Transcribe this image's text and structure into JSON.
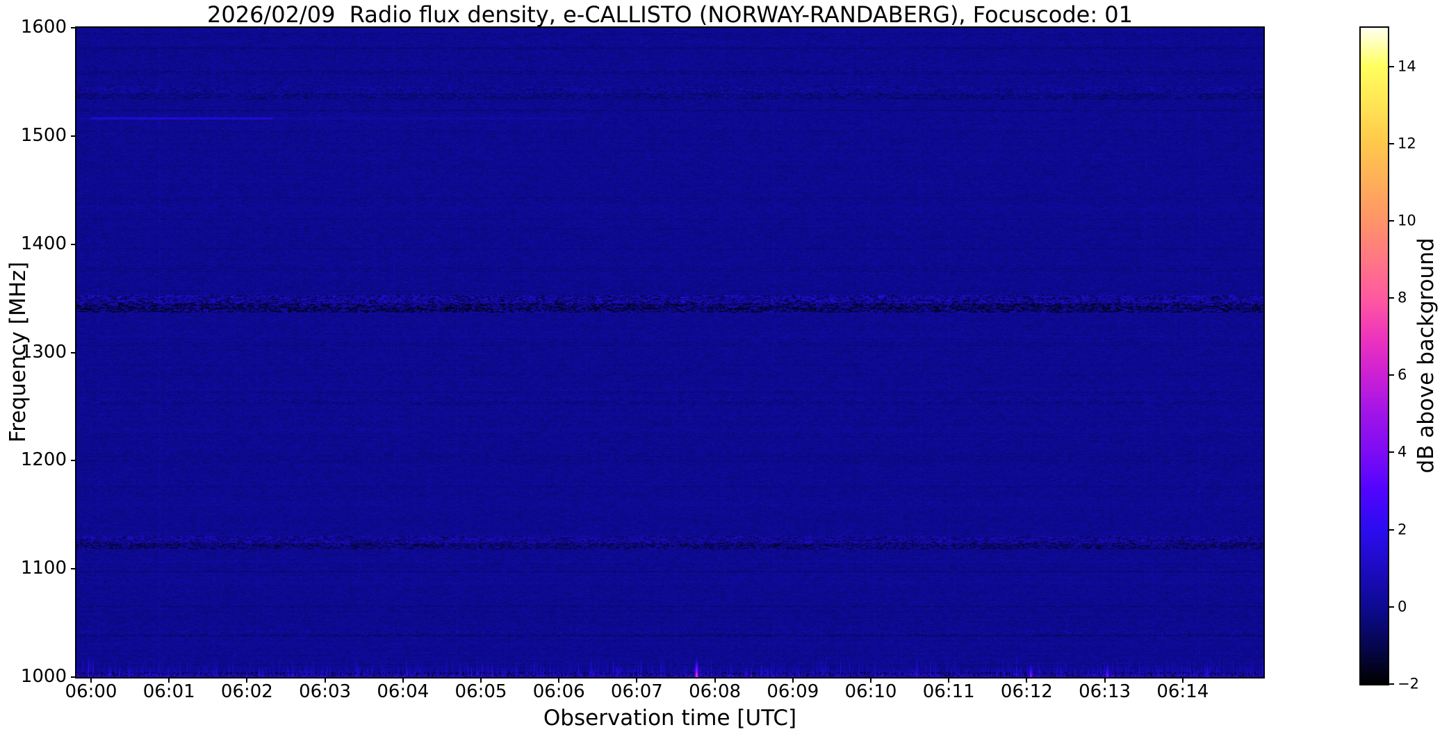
{
  "chart_data": {
    "type": "heatmap",
    "subtype": "radio-spectrogram",
    "title": "2026/02/09  Radio flux density, e-CALLISTO (NORWAY-RANDABERG), Focuscode: 01",
    "xlabel": "Observation time [UTC]",
    "ylabel": "Frequency [MHz]",
    "x_ticks": [
      "06:00",
      "06:01",
      "06:02",
      "06:03",
      "06:04",
      "06:05",
      "06:06",
      "06:07",
      "06:08",
      "06:09",
      "06:10",
      "06:11",
      "06:12",
      "06:13",
      "06:14"
    ],
    "y_ticks": [
      1600,
      1500,
      1400,
      1300,
      1200,
      1100,
      1000
    ],
    "x_range_utc": [
      "05:59:49",
      "06:15:00"
    ],
    "y_range_mhz": [
      1000,
      1600
    ],
    "grid": false,
    "background_level_db": 0,
    "base_noise_db": 0.33,
    "background_color": "#0d0a92",
    "colorbar": {
      "label": "dB above background",
      "ticks": [
        14,
        12,
        10,
        8,
        6,
        4,
        2,
        0,
        -2
      ],
      "range_db": [
        -2,
        15
      ],
      "position": "right",
      "colormap_stops": [
        {
          "v": -2,
          "c": "#000000"
        },
        {
          "v": -1,
          "c": "#06064f"
        },
        {
          "v": 0,
          "c": "#0d0a92"
        },
        {
          "v": 2,
          "c": "#2c0cf0"
        },
        {
          "v": 3,
          "c": "#5004ff"
        },
        {
          "v": 4,
          "c": "#7d0bf5"
        },
        {
          "v": 5,
          "c": "#a014e8"
        },
        {
          "v": 6,
          "c": "#cc20d4"
        },
        {
          "v": 7,
          "c": "#ee35bb"
        },
        {
          "v": 8,
          "c": "#ff5aa0"
        },
        {
          "v": 10,
          "c": "#ff9468"
        },
        {
          "v": 12,
          "c": "#ffc84b"
        },
        {
          "v": 14,
          "c": "#ffff5e"
        },
        {
          "v": 15,
          "c": "#fffff0"
        }
      ]
    },
    "features": {
      "speckle_bands": [
        {
          "freq_mhz": 1345,
          "width_mhz": 16,
          "noise_db": 1.5
        },
        {
          "freq_mhz": 1124,
          "width_mhz": 12,
          "noise_db": 1.15
        },
        {
          "freq_mhz": 1540,
          "width_mhz": 12,
          "noise_db": 0.7
        },
        {
          "freq_mhz": 1255,
          "width_mhz": 6,
          "noise_db": 0.5
        },
        {
          "freq_mhz": 1560,
          "width_mhz": 5,
          "noise_db": 0.45
        },
        {
          "freq_mhz": 1040,
          "width_mhz": 6,
          "noise_db": 0.5
        }
      ],
      "carrier_lines": [
        {
          "freq_mhz": 1516,
          "t_start_s": 0,
          "t_end_s": 140,
          "level_db": 1.4,
          "fade_t_end_s": 380,
          "fade_level_db": 0.5
        }
      ],
      "bottom_rfi": {
        "freq_lo_mhz": 1000,
        "freq_hi_mhz": 1016,
        "typical_db": 1.5,
        "max_db": 4
      },
      "bursts": [
        {
          "t_s": 466,
          "freq_lo_mhz": 1000,
          "freq_hi_mhz": 1020,
          "peak_db": 8.5
        },
        {
          "t_s": 723,
          "freq_lo_mhz": 1000,
          "freq_hi_mhz": 1014,
          "peak_db": 5.5
        },
        {
          "t_s": 782,
          "freq_lo_mhz": 1000,
          "freq_hi_mhz": 1014,
          "peak_db": 5.0
        }
      ]
    }
  }
}
